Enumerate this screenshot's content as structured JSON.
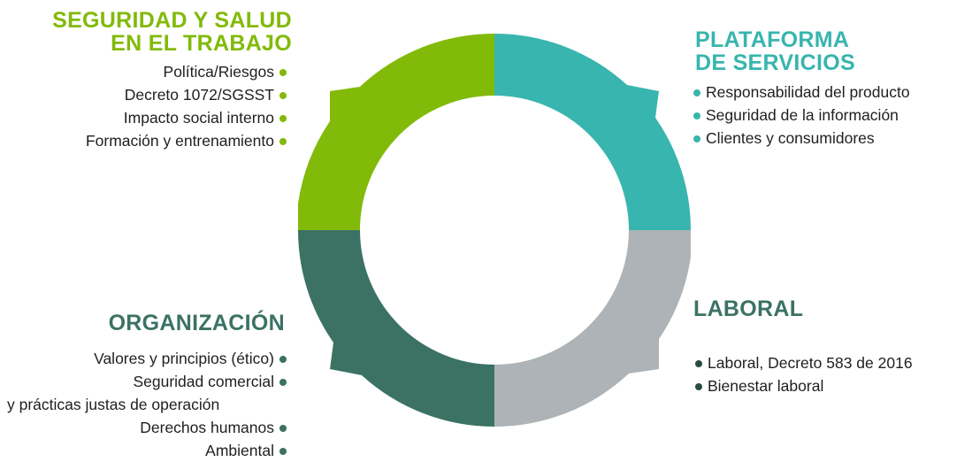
{
  "colors": {
    "seguridad": "#82BA0A",
    "plataforma": "#38B5AE",
    "laboral": "#ADB3B6",
    "organizacion": "#3B7264",
    "dot_laboral": "#264D40"
  },
  "quadrants": {
    "seguridad": {
      "title_line1": "SEGURIDAD Y SALUD",
      "title_line2": "EN EL TRABAJO",
      "items": [
        "Política/Riesgos",
        "Decreto 1072/SGSST",
        "Impacto social interno",
        "Formación y entrenamiento"
      ]
    },
    "plataforma": {
      "title_line1": "PLATAFORMA",
      "title_line2": "DE SERVICIOS",
      "items": [
        "Responsabilidad del producto",
        "Seguridad de la información",
        "Clientes y consumidores"
      ]
    },
    "laboral": {
      "title": "LABORAL",
      "items": [
        "Laboral, Decreto 583 de 2016",
        "Bienestar laboral"
      ]
    },
    "organizacion": {
      "title": "ORGANIZACIÓN",
      "items": [
        "Valores y principios (ético)",
        "Seguridad comercial",
        "y prácticas justas de operación",
        "Derechos humanos",
        "Ambiental"
      ]
    }
  }
}
